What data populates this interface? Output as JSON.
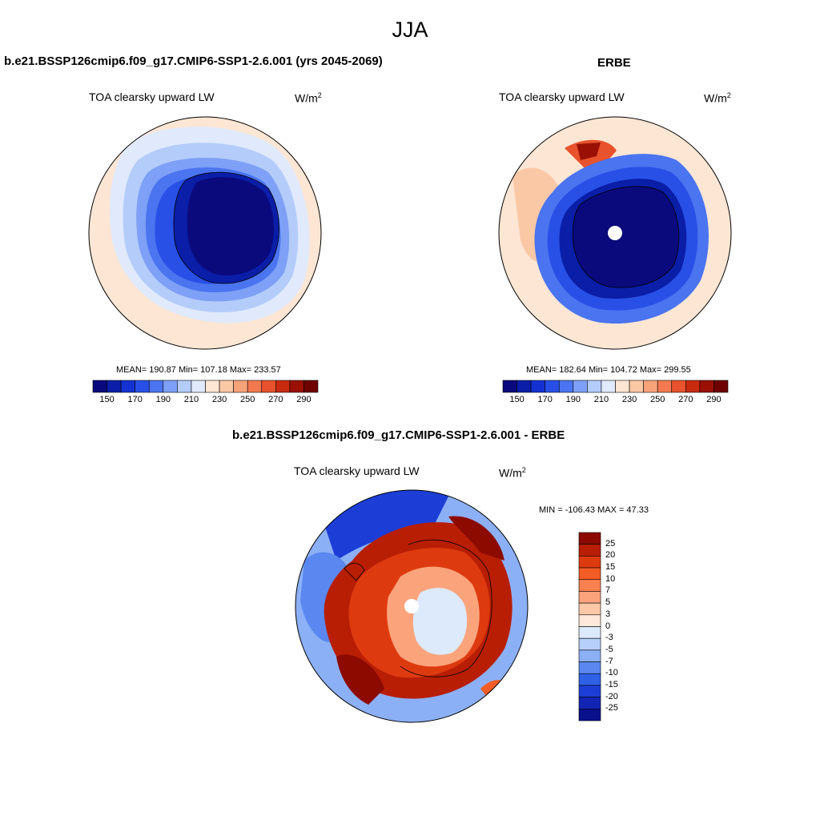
{
  "title": "JJA",
  "panels": [
    {
      "case_title": "b.e21.BSSP126cmip6.f09_g17.CMIP6-SSP1-2.6.001 (yrs 2045-2069)",
      "variable": "TOA clearsky upward LW",
      "units_base": "W/m",
      "units_exp": "2",
      "stats": "MEAN= 190.87  Min= 107.18  Max= 233.57"
    },
    {
      "case_title": "ERBE",
      "variable": "TOA clearsky upward LW",
      "units_base": "W/m",
      "units_exp": "2",
      "stats": "MEAN= 182.64  Min= 104.72  Max= 299.55"
    }
  ],
  "colorbar_abs": {
    "colors": [
      "#0a0a7d",
      "#0a1ea8",
      "#1432d2",
      "#2850e6",
      "#4a74f0",
      "#7ea0f6",
      "#b4ccfa",
      "#e0eafc",
      "#fde6d4",
      "#fbc8a6",
      "#f8a27a",
      "#f37a50",
      "#e8522c",
      "#c82a10",
      "#9a1004",
      "#6e0000"
    ],
    "tick_labels": [
      "150",
      "170",
      "190",
      "210",
      "230",
      "250",
      "270",
      "290"
    ]
  },
  "diff_panel": {
    "case_title": "b.e21.BSSP126cmip6.f09_g17.CMIP6-SSP1-2.6.001 - ERBE",
    "variable": "TOA clearsky upward LW",
    "units_base": "W/m",
    "units_exp": "2",
    "minmax": "MIN = -106.43 MAX =  47.33"
  },
  "colorbar_diff": {
    "colors": [
      "#8c0a00",
      "#b81e04",
      "#de3a10",
      "#f45c26",
      "#fa8050",
      "#fba47c",
      "#fcc8a8",
      "#fde8da",
      "#dceafc",
      "#b6cefa",
      "#8cb0f6",
      "#5a88f0",
      "#3060e6",
      "#1c3ed6",
      "#1224b4",
      "#08108c"
    ],
    "tick_labels": [
      "25",
      "20",
      "15",
      "10",
      "7",
      "5",
      "3",
      "0",
      "-3",
      "-5",
      "-7",
      "-10",
      "-15",
      "-20",
      "-25"
    ]
  }
}
